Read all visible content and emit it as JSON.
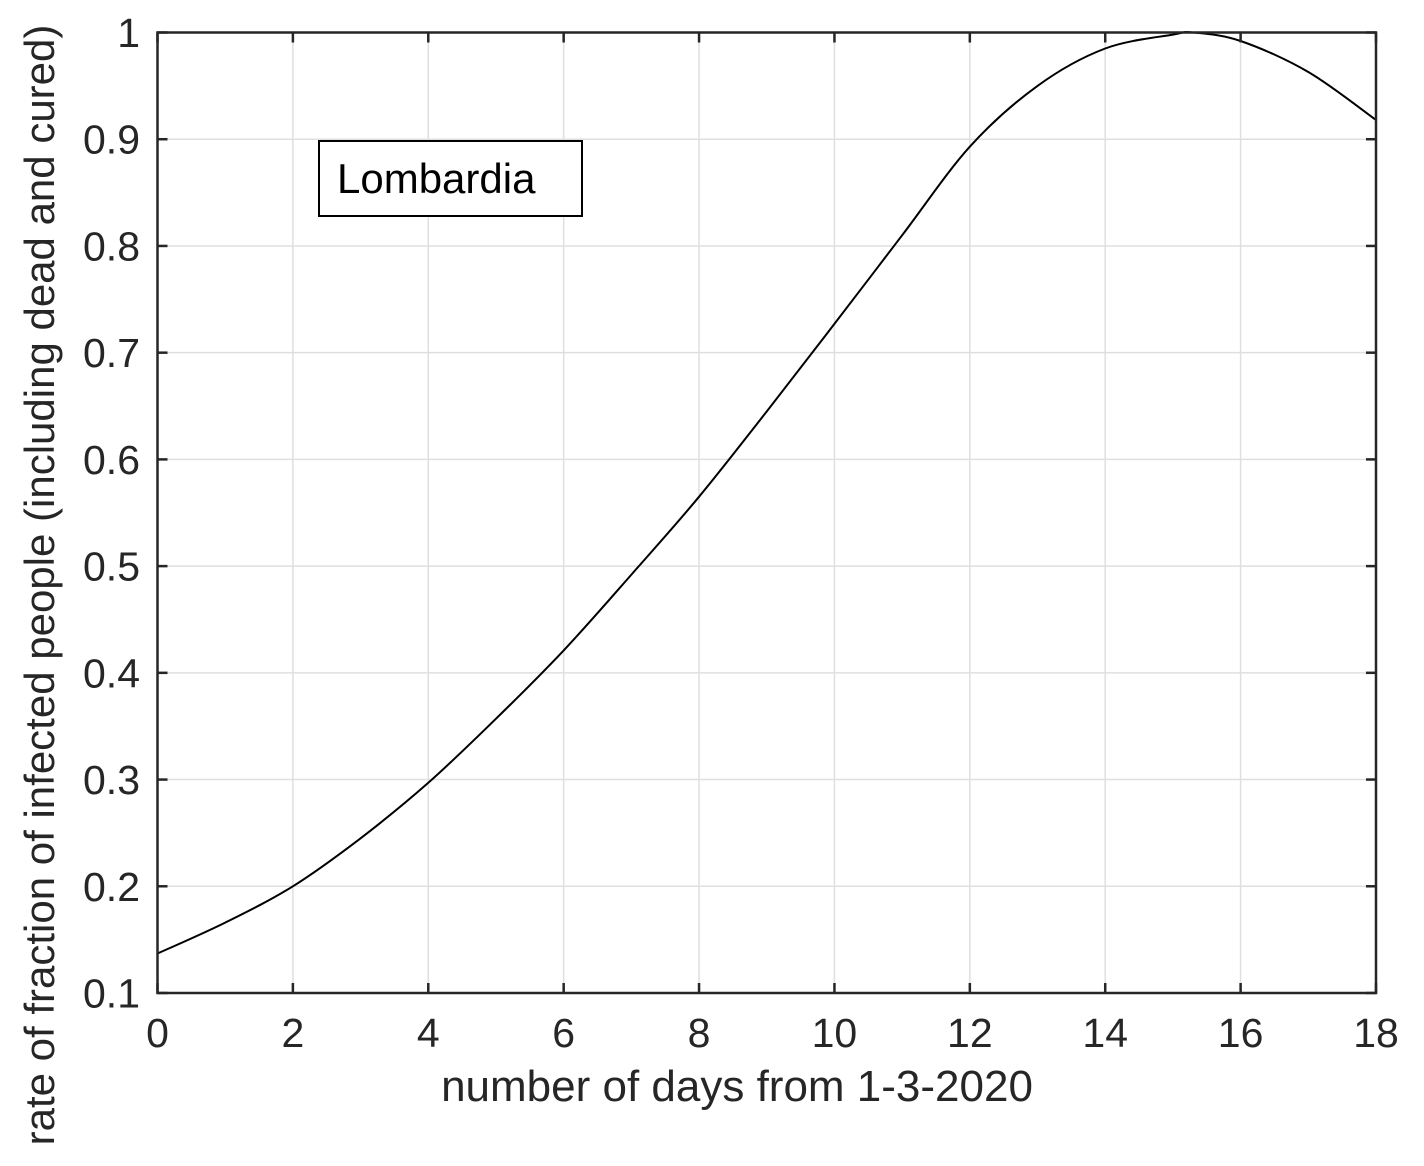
{
  "figure": {
    "background": "#ffffff",
    "text_color": "#262626"
  },
  "chart_data": {
    "type": "line",
    "title": "",
    "xlabel": "number of days from 1-3-2020",
    "ylabel": "rate of fraction of infected people (including dead and cured)",
    "annotation": "Lombardia",
    "xlim": [
      0,
      18
    ],
    "ylim": [
      0.1,
      1.0
    ],
    "xticks": [
      "0",
      "2",
      "4",
      "6",
      "8",
      "10",
      "12",
      "14",
      "16",
      "18"
    ],
    "yticks": [
      "0.1",
      "0.2",
      "0.3",
      "0.4",
      "0.5",
      "0.6",
      "0.7",
      "0.8",
      "0.9",
      "1"
    ],
    "grid": true,
    "grid_color": "#dfdfdf",
    "axis_color": "#262626",
    "legend_position": "upper-left-inside",
    "series": [
      {
        "name": "Lombardia",
        "color": "#000000",
        "x": [
          0,
          1,
          2,
          3,
          4,
          5,
          6,
          7,
          8,
          9,
          10,
          11,
          12,
          13,
          14,
          15,
          15.3,
          16,
          17,
          18
        ],
        "y": [
          0.137,
          0.166,
          0.2,
          0.245,
          0.297,
          0.357,
          0.421,
          0.492,
          0.565,
          0.645,
          0.727,
          0.81,
          0.893,
          0.95,
          0.985,
          0.998,
          1.0,
          0.992,
          0.963,
          0.918
        ]
      }
    ]
  }
}
